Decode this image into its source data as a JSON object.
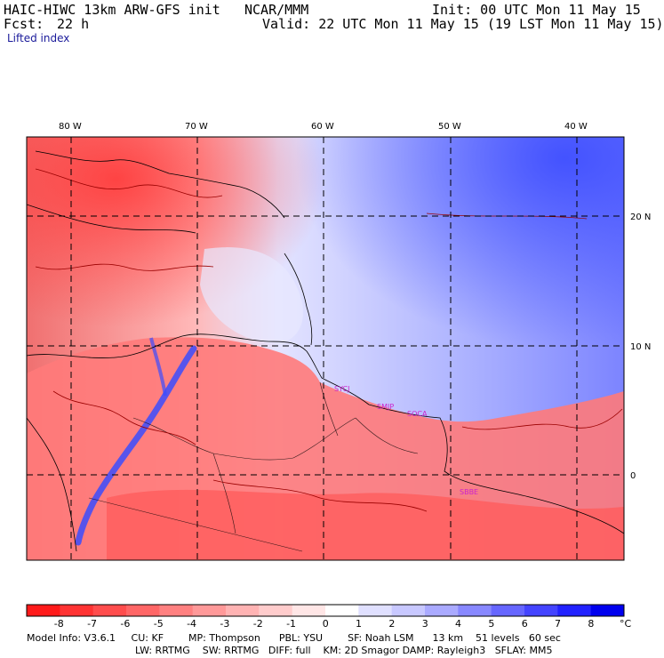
{
  "header": {
    "model": "HAIC-HIWC 13km ARW-GFS init",
    "center": "NCAR/MMM",
    "init": "Init: 00 UTC Mon 11 May 15",
    "fcst_label": "Fcst:",
    "fcst_value": "22 h",
    "valid": "Valid: 22 UTC Mon 11 May 15 (19 LST Mon 11 May 15)",
    "field": "Lifted index"
  },
  "axes": {
    "lon_labels": [
      "80 W",
      "70 W",
      "60 W",
      "50 W",
      "40 W"
    ],
    "lat_labels": [
      "20 N",
      "10 N",
      "0"
    ]
  },
  "stations": [
    "SYCJ",
    "SMJP",
    "SOCA",
    "SBBE"
  ],
  "colorbar": {
    "labels": [
      "-8",
      "-7",
      "-6",
      "-5",
      "-4",
      "-3",
      "-2",
      "-1",
      "0",
      "1",
      "2",
      "3",
      "4",
      "5",
      "6",
      "7",
      "8"
    ],
    "unit": "°C",
    "colors": [
      "#ff1a1a",
      "#ff3333",
      "#ff4d4d",
      "#ff6666",
      "#ff8080",
      "#ff9999",
      "#ffb3b3",
      "#ffcccc",
      "#ffe6e6",
      "#ffffff",
      "#e0e0ff",
      "#c8c8ff",
      "#aaaaff",
      "#8888ff",
      "#6666ff",
      "#4444ff",
      "#2222ff",
      "#0000ee"
    ]
  },
  "footer": {
    "line1": "Model Info: V3.6.1     CU: KF        MP: Thompson      PBL: YSU        SF: Noah LSM      13 km    51 levels   60 sec",
    "line2": "LW: RRTMG    SW: RRTMG   DIFF: full    KM: 2D Smagor DAMP: Rayleigh3   SFLAY: MM5"
  }
}
